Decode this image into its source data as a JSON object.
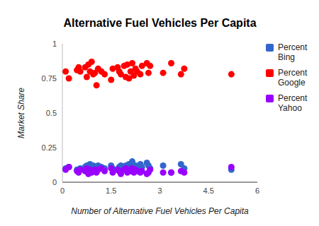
{
  "chart_data": {
    "type": "scatter",
    "title": "Alternative Fuel Vehicles Per Capita",
    "x_label": "Number of Alternative Fuel Vehicles Per Capita",
    "y_label": "Market Share",
    "x": [
      0.1,
      0.2,
      0.45,
      0.5,
      0.55,
      0.7,
      0.75,
      0.8,
      0.85,
      0.9,
      0.95,
      1.0,
      1.05,
      1.1,
      1.2,
      1.3,
      1.5,
      1.55,
      1.7,
      1.75,
      1.8,
      1.9,
      1.95,
      2.0,
      2.05,
      2.1,
      2.15,
      2.2,
      2.25,
      2.3,
      2.4,
      2.45,
      2.6,
      2.65,
      2.7,
      3.1,
      3.35,
      3.65,
      3.75,
      5.2
    ],
    "series": [
      {
        "name": "Percent Bing",
        "color": "#3366cc",
        "values": [
          0.1,
          0.11,
          0.09,
          0.08,
          0.1,
          0.11,
          0.12,
          0.1,
          0.13,
          0.09,
          0.12,
          0.11,
          0.1,
          0.12,
          0.11,
          0.1,
          0.12,
          0.1,
          0.09,
          0.11,
          0.12,
          0.1,
          0.12,
          0.11,
          0.13,
          0.1,
          0.15,
          0.11,
          0.12,
          0.1,
          0.13,
          0.11,
          0.14,
          0.12,
          0.1,
          0.12,
          0.07,
          0.13,
          0.1,
          0.09
        ]
      },
      {
        "name": "Percent Google",
        "color": "#ff0000",
        "values": [
          0.8,
          0.75,
          0.81,
          0.83,
          0.8,
          0.83,
          0.76,
          0.85,
          0.8,
          0.87,
          0.78,
          0.79,
          0.7,
          0.82,
          0.8,
          0.78,
          0.74,
          0.82,
          0.83,
          0.8,
          0.78,
          0.84,
          0.76,
          0.85,
          0.75,
          0.8,
          0.86,
          0.77,
          0.82,
          0.8,
          0.78,
          0.84,
          0.86,
          0.79,
          0.84,
          0.79,
          0.86,
          0.78,
          0.82,
          0.78
        ]
      },
      {
        "name": "Percent Yahoo",
        "color": "#9900ff",
        "values": [
          0.09,
          0.11,
          0.08,
          0.07,
          0.09,
          0.08,
          0.1,
          0.06,
          0.09,
          0.07,
          0.08,
          0.09,
          0.07,
          0.09,
          0.1,
          0.08,
          0.1,
          0.07,
          0.09,
          0.08,
          0.06,
          0.09,
          0.1,
          0.07,
          0.09,
          0.08,
          0.1,
          0.07,
          0.09,
          0.08,
          0.07,
          0.08,
          0.06,
          0.07,
          0.09,
          0.07,
          0.07,
          0.08,
          0.07,
          0.11
        ]
      }
    ],
    "xlim": [
      0,
      6
    ],
    "xticks": [
      0,
      1.5,
      3,
      4.5,
      6
    ],
    "ylim": [
      0,
      1
    ],
    "yticks": [
      0,
      0.25,
      0.5,
      0.75,
      1
    ],
    "grid": false,
    "legend": "right",
    "marker": "circle"
  }
}
